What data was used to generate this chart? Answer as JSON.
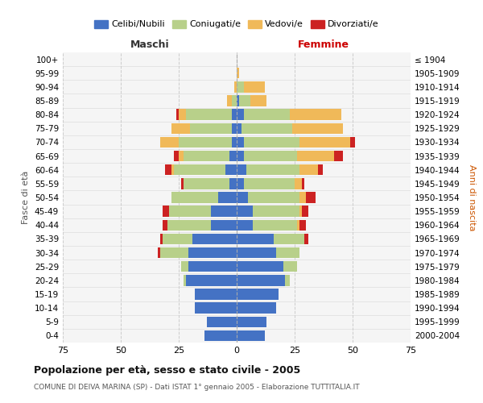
{
  "age_groups": [
    "0-4",
    "5-9",
    "10-14",
    "15-19",
    "20-24",
    "25-29",
    "30-34",
    "35-39",
    "40-44",
    "45-49",
    "50-54",
    "55-59",
    "60-64",
    "65-69",
    "70-74",
    "75-79",
    "80-84",
    "85-89",
    "90-94",
    "95-99",
    "100+"
  ],
  "birth_years": [
    "2000-2004",
    "1995-1999",
    "1990-1994",
    "1985-1989",
    "1980-1984",
    "1975-1979",
    "1970-1974",
    "1965-1969",
    "1960-1964",
    "1955-1959",
    "1950-1954",
    "1945-1949",
    "1940-1944",
    "1935-1939",
    "1930-1934",
    "1925-1929",
    "1920-1924",
    "1915-1919",
    "1910-1914",
    "1905-1909",
    "≤ 1904"
  ],
  "colors": {
    "celibi": "#4472c4",
    "coniugati": "#b8d08a",
    "vedovi": "#f0b959",
    "divorziati": "#cc2222"
  },
  "maschi": {
    "celibi": [
      14,
      13,
      18,
      18,
      22,
      21,
      21,
      19,
      11,
      11,
      8,
      3,
      5,
      3,
      2,
      2,
      2,
      0,
      0,
      0,
      0
    ],
    "coniugati": [
      0,
      0,
      0,
      0,
      1,
      3,
      12,
      13,
      19,
      18,
      20,
      20,
      22,
      20,
      23,
      18,
      20,
      2,
      0,
      0,
      0
    ],
    "vedovi": [
      0,
      0,
      0,
      0,
      0,
      0,
      0,
      0,
      0,
      0,
      0,
      0,
      1,
      2,
      8,
      8,
      3,
      2,
      1,
      0,
      0
    ],
    "divorziati": [
      0,
      0,
      0,
      0,
      0,
      0,
      1,
      1,
      2,
      3,
      0,
      1,
      3,
      2,
      0,
      0,
      1,
      0,
      0,
      0,
      0
    ]
  },
  "femmine": {
    "celibi": [
      12,
      13,
      17,
      18,
      21,
      20,
      17,
      16,
      7,
      7,
      5,
      3,
      4,
      3,
      3,
      2,
      3,
      1,
      0,
      0,
      0
    ],
    "coniugati": [
      0,
      0,
      0,
      0,
      2,
      6,
      10,
      13,
      19,
      20,
      22,
      22,
      23,
      23,
      24,
      22,
      20,
      5,
      3,
      0,
      0
    ],
    "vedovi": [
      0,
      0,
      0,
      0,
      0,
      0,
      0,
      0,
      1,
      1,
      3,
      3,
      8,
      16,
      22,
      22,
      22,
      7,
      9,
      1,
      0
    ],
    "divorziati": [
      0,
      0,
      0,
      0,
      0,
      0,
      0,
      2,
      3,
      3,
      4,
      1,
      2,
      4,
      2,
      0,
      0,
      0,
      0,
      0,
      0
    ]
  },
  "title": "Popolazione per età, sesso e stato civile - 2005",
  "subtitle": "COMUNE DI DEIVA MARINA (SP) - Dati ISTAT 1° gennaio 2005 - Elaborazione TUTTITALIA.IT",
  "xlabel_left": "Maschi",
  "xlabel_right": "Femmine",
  "ylabel_left": "Fasce di età",
  "ylabel_right": "Anni di nascita",
  "xlim": 75,
  "background_color": "#f5f5f5",
  "legend_labels": [
    "Celibi/Nubili",
    "Coniugati/e",
    "Vedovi/e",
    "Divorziati/e"
  ]
}
